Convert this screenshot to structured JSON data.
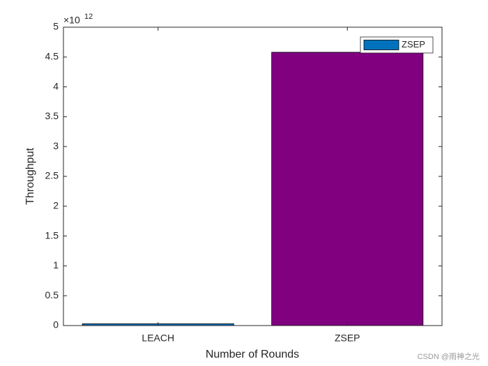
{
  "chart_data": {
    "type": "bar",
    "x_label": "Number of Rounds",
    "y_label": "Throughput",
    "y_scale_label": {
      "base": "×10",
      "exponent": "12"
    },
    "categories": [
      "LEACH",
      "ZSEP"
    ],
    "series": [
      {
        "name": "ZSEP",
        "color": "#0072bd",
        "values": [
          0.03,
          4.58
        ],
        "bar_colors": [
          "#0072bd",
          "#800080"
        ]
      }
    ],
    "ylim": [
      0,
      5
    ],
    "yticks": [
      0,
      0.5,
      1,
      1.5,
      2,
      2.5,
      3,
      3.5,
      4,
      4.5,
      5
    ],
    "grid": false,
    "legend": "top-right"
  },
  "watermark": "CSDN @雨神之光"
}
